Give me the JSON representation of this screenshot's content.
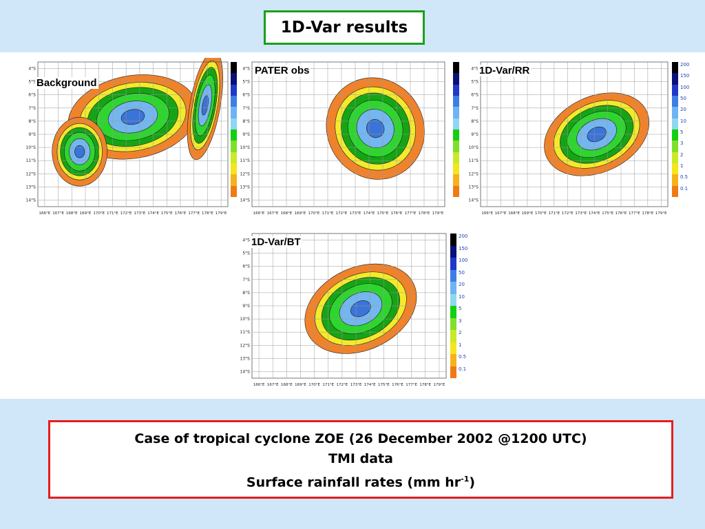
{
  "slide": {
    "title": "1D-Var results",
    "caption": {
      "line1": "Case of tropical cyclone ZOE (26 December 2002 @1200 UTC)",
      "line2": "TMI data",
      "line3_prefix": "Surface rainfall rates (mm hr",
      "line3_sup": "-1",
      "line3_suffix": ")"
    }
  },
  "panels": [
    {
      "key": "background",
      "label": "Background"
    },
    {
      "key": "pater",
      "label": "PATER obs"
    },
    {
      "key": "rr",
      "label": "1D-Var/RR"
    },
    {
      "key": "bt",
      "label": "1D-Var/BT"
    }
  ],
  "lat_ticks": [
    "4°S",
    "5°S",
    "6°S",
    "7°S",
    "8°S",
    "9°S",
    "10°S",
    "11°S",
    "12°S",
    "13°S",
    "14°S"
  ],
  "lon_ticks": [
    "166°E",
    "167°E",
    "168°E",
    "169°E",
    "170°E",
    "171°E",
    "172°E",
    "173°E",
    "174°E",
    "175°E",
    "176°E",
    "177°E",
    "178°E",
    "179°E"
  ],
  "colorbar": {
    "levels": [
      "200",
      "150",
      "100",
      "50",
      "20",
      "10",
      "5",
      "3",
      "2",
      "1",
      "0.5",
      "0.1"
    ],
    "colors": [
      "#000000",
      "#08107a",
      "#1f38c8",
      "#3d7ee6",
      "#6fb3f5",
      "#8fd6f0",
      "#12cf12",
      "#7ee02a",
      "#c8ea2a",
      "#f5e51c",
      "#f5b21c",
      "#f07a14"
    ]
  },
  "palette": {
    "dark_green": "#16a416",
    "green": "#2ed52e",
    "light_blue": "#74b6f0",
    "blue": "#3b74d8",
    "yellow": "#f3ea2c",
    "orange": "#f1822a"
  }
}
